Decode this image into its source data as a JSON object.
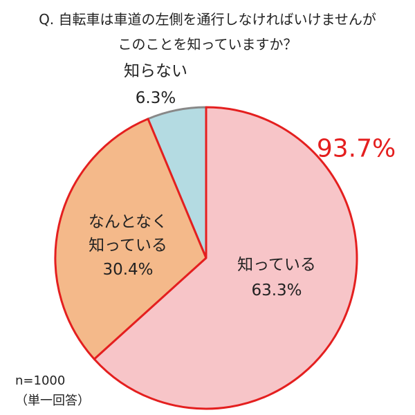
{
  "chart_data": {
    "type": "pie",
    "title_lines": [
      "Q. 自転車は車道の左側を通行しなければいけませんが",
      "このことを知っていますか？"
    ],
    "categories": [
      "知っている",
      "なんとなく\n知っている",
      "知らない"
    ],
    "values": [
      63.3,
      30.4,
      6.3
    ],
    "value_labels": [
      "63.3%",
      "30.4%",
      "6.3%"
    ],
    "colors": [
      "#f7c5c8",
      "#f4b98a",
      "#b4dbe2"
    ],
    "edge_colors": [
      "#e41f1f",
      "#e41f1f",
      "#888888"
    ],
    "annotation": "93.7%",
    "notes": [
      "n=1000",
      "（単一回答）"
    ]
  }
}
